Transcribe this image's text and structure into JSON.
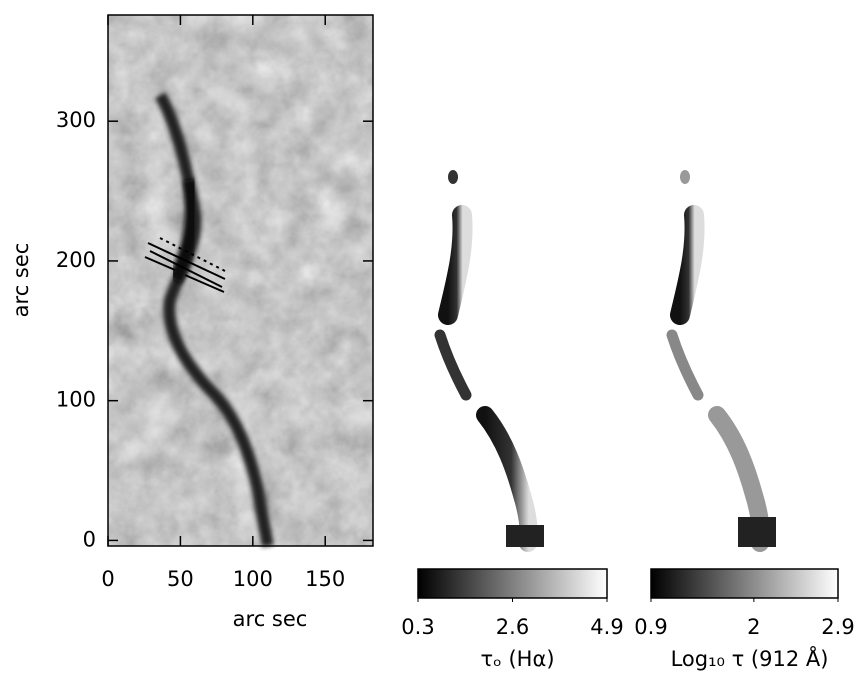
{
  "chart_data": {
    "type": "image",
    "x_label": "arc sec",
    "y_label": "arc sec",
    "xlim": [
      0,
      183
    ],
    "ylim": [
      -4,
      376
    ],
    "xticks": [
      0,
      50,
      100,
      150
    ],
    "yticks": [
      0,
      100,
      200,
      300
    ],
    "colormap": "gray",
    "colorbars": [
      {
        "label": "τₒ (Hα)",
        "lim": [
          0.3,
          4.9
        ],
        "ticks": [
          0.3,
          2.6,
          4.9
        ]
      },
      {
        "label": "Log₁₀ τ (912 Å)",
        "lim": [
          0.9,
          2.9
        ],
        "ticks": [
          0.9,
          2,
          2.9
        ]
      }
    ]
  }
}
